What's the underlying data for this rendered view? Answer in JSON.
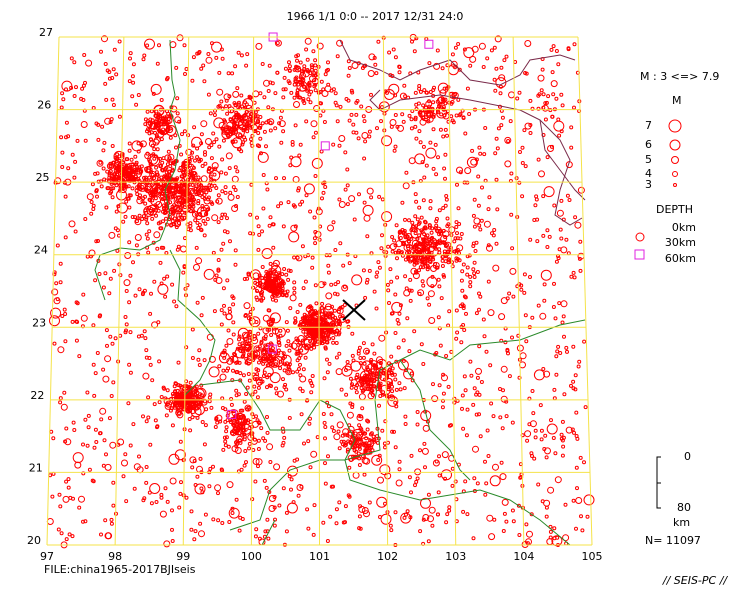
{
  "map": {
    "title": "1966 1/1  0:0 -- 2017 12/31 24:0",
    "xticks": [
      97,
      98,
      99,
      100,
      101,
      102,
      103,
      104,
      105
    ],
    "yticks": [
      20,
      21,
      22,
      23,
      24,
      25,
      26,
      27
    ],
    "file": "FILE:china1965-2017BJIseis",
    "footer": "// SEIS-PC //"
  },
  "legend": {
    "range": "M : 3 <=> 7.9",
    "m_title": "M",
    "magnitudes": [
      "7",
      "6",
      "5",
      "4",
      "3"
    ],
    "depth_title": "DEPTH",
    "depths": [
      "0km",
      "30km",
      "60km"
    ],
    "scale_top": "0",
    "scale_bottom": "80",
    "scale_unit": "km",
    "count": "N= 11097"
  }
}
